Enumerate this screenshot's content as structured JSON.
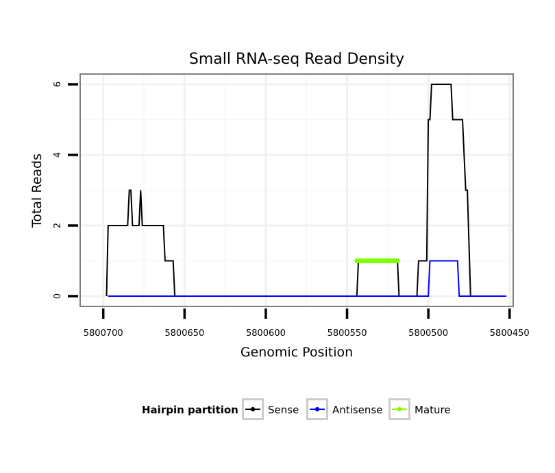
{
  "chart_data": {
    "type": "line",
    "title": "Small RNA-seq Read Density",
    "xlabel": "Genomic Position",
    "ylabel": "Total Reads",
    "x_reversed": true,
    "xlim": [
      5800452,
      5800710
    ],
    "ylim": [
      0,
      6
    ],
    "x_ticks": [
      5800700,
      5800650,
      5800600,
      5800550,
      5800500,
      5800450
    ],
    "x_tick_labels": [
      "5800700",
      "5800650",
      "5800600",
      "5800550",
      "5800500",
      "5800450"
    ],
    "y_ticks": [
      0,
      2,
      4,
      6
    ],
    "y_tick_labels": [
      "0",
      "2",
      "4",
      "6"
    ],
    "grid": true,
    "legend_position": "bottom",
    "legend_title": "Hairpin partition",
    "series": [
      {
        "name": "Sense",
        "color": "#000000",
        "line_style": "thin",
        "x": [
          5800698,
          5800697,
          5800685,
          5800684,
          5800683,
          5800682,
          5800681,
          5800678,
          5800677,
          5800676,
          5800663,
          5800662,
          5800661,
          5800657,
          5800656,
          5800544,
          5800543,
          5800519,
          5800518,
          5800507,
          5800506,
          5800505,
          5800501,
          5800500,
          5800499,
          5800498,
          5800486,
          5800485,
          5800479,
          5800477,
          5800476,
          5800474,
          5800473,
          5800452
        ],
        "values": [
          0,
          2,
          2,
          3,
          3,
          2,
          2,
          2,
          3,
          2,
          2,
          1,
          1,
          1,
          0,
          0,
          1,
          1,
          0,
          0,
          1,
          1,
          1,
          5,
          5,
          6,
          6,
          5,
          5,
          3,
          3,
          0,
          0,
          0
        ]
      },
      {
        "name": "Antisense",
        "color": "#0000ff",
        "line_style": "thin",
        "x": [
          5800697,
          5800500,
          5800499,
          5800482,
          5800481,
          5800452
        ],
        "values": [
          0,
          0,
          1,
          1,
          0,
          0
        ]
      },
      {
        "name": "Mature",
        "color": "#7fff00",
        "line_style": "thick",
        "x": [
          5800544,
          5800519
        ],
        "values": [
          1,
          1
        ]
      }
    ]
  }
}
